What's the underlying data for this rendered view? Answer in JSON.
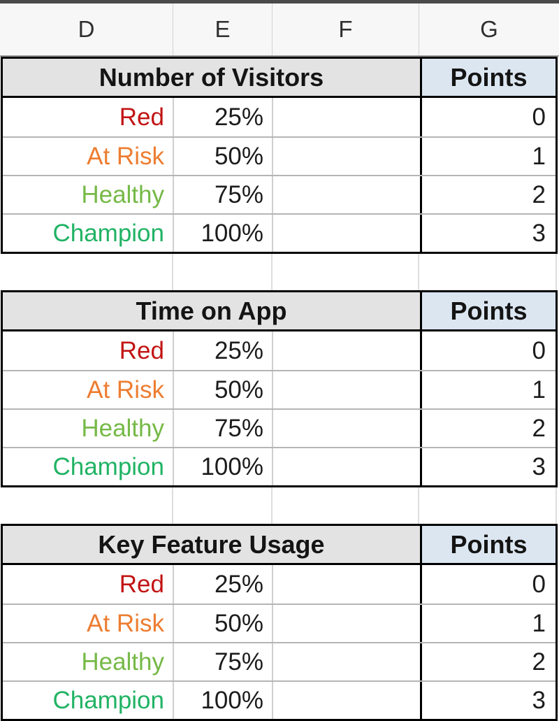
{
  "column_headers": [
    "D",
    "E",
    "F",
    "G"
  ],
  "colors": {
    "red": "#c21414",
    "at_risk_orange": "#ed7d31",
    "healthy_green": "#76b947",
    "champion_green": "#21b364",
    "title_header_bg": "#e3e3e3",
    "points_header_bg": "#dbe6f1"
  },
  "tables": [
    {
      "title": "Number of Visitors",
      "points_header": "Points",
      "rows": [
        {
          "label": "Red",
          "color": "#c21414",
          "value": "25%",
          "points": "0"
        },
        {
          "label": "At Risk",
          "color": "#ed7d31",
          "value": "50%",
          "points": "1"
        },
        {
          "label": "Healthy",
          "color": "#76b947",
          "value": "75%",
          "points": "2"
        },
        {
          "label": "Champion",
          "color": "#21b364",
          "value": "100%",
          "points": "3"
        }
      ]
    },
    {
      "title": "Time on App",
      "points_header": "Points",
      "rows": [
        {
          "label": "Red",
          "color": "#c21414",
          "value": "25%",
          "points": "0"
        },
        {
          "label": "At Risk",
          "color": "#ed7d31",
          "value": "50%",
          "points": "1"
        },
        {
          "label": "Healthy",
          "color": "#76b947",
          "value": "75%",
          "points": "2"
        },
        {
          "label": "Champion",
          "color": "#21b364",
          "value": "100%",
          "points": "3"
        }
      ]
    },
    {
      "title": "Key Feature Usage",
      "points_header": "Points",
      "rows": [
        {
          "label": "Red",
          "color": "#c21414",
          "value": "25%",
          "points": "0"
        },
        {
          "label": "At Risk",
          "color": "#ed7d31",
          "value": "50%",
          "points": "1"
        },
        {
          "label": "Healthy",
          "color": "#76b947",
          "value": "75%",
          "points": "2"
        },
        {
          "label": "Champion",
          "color": "#21b364",
          "value": "100%",
          "points": "3"
        }
      ]
    }
  ]
}
